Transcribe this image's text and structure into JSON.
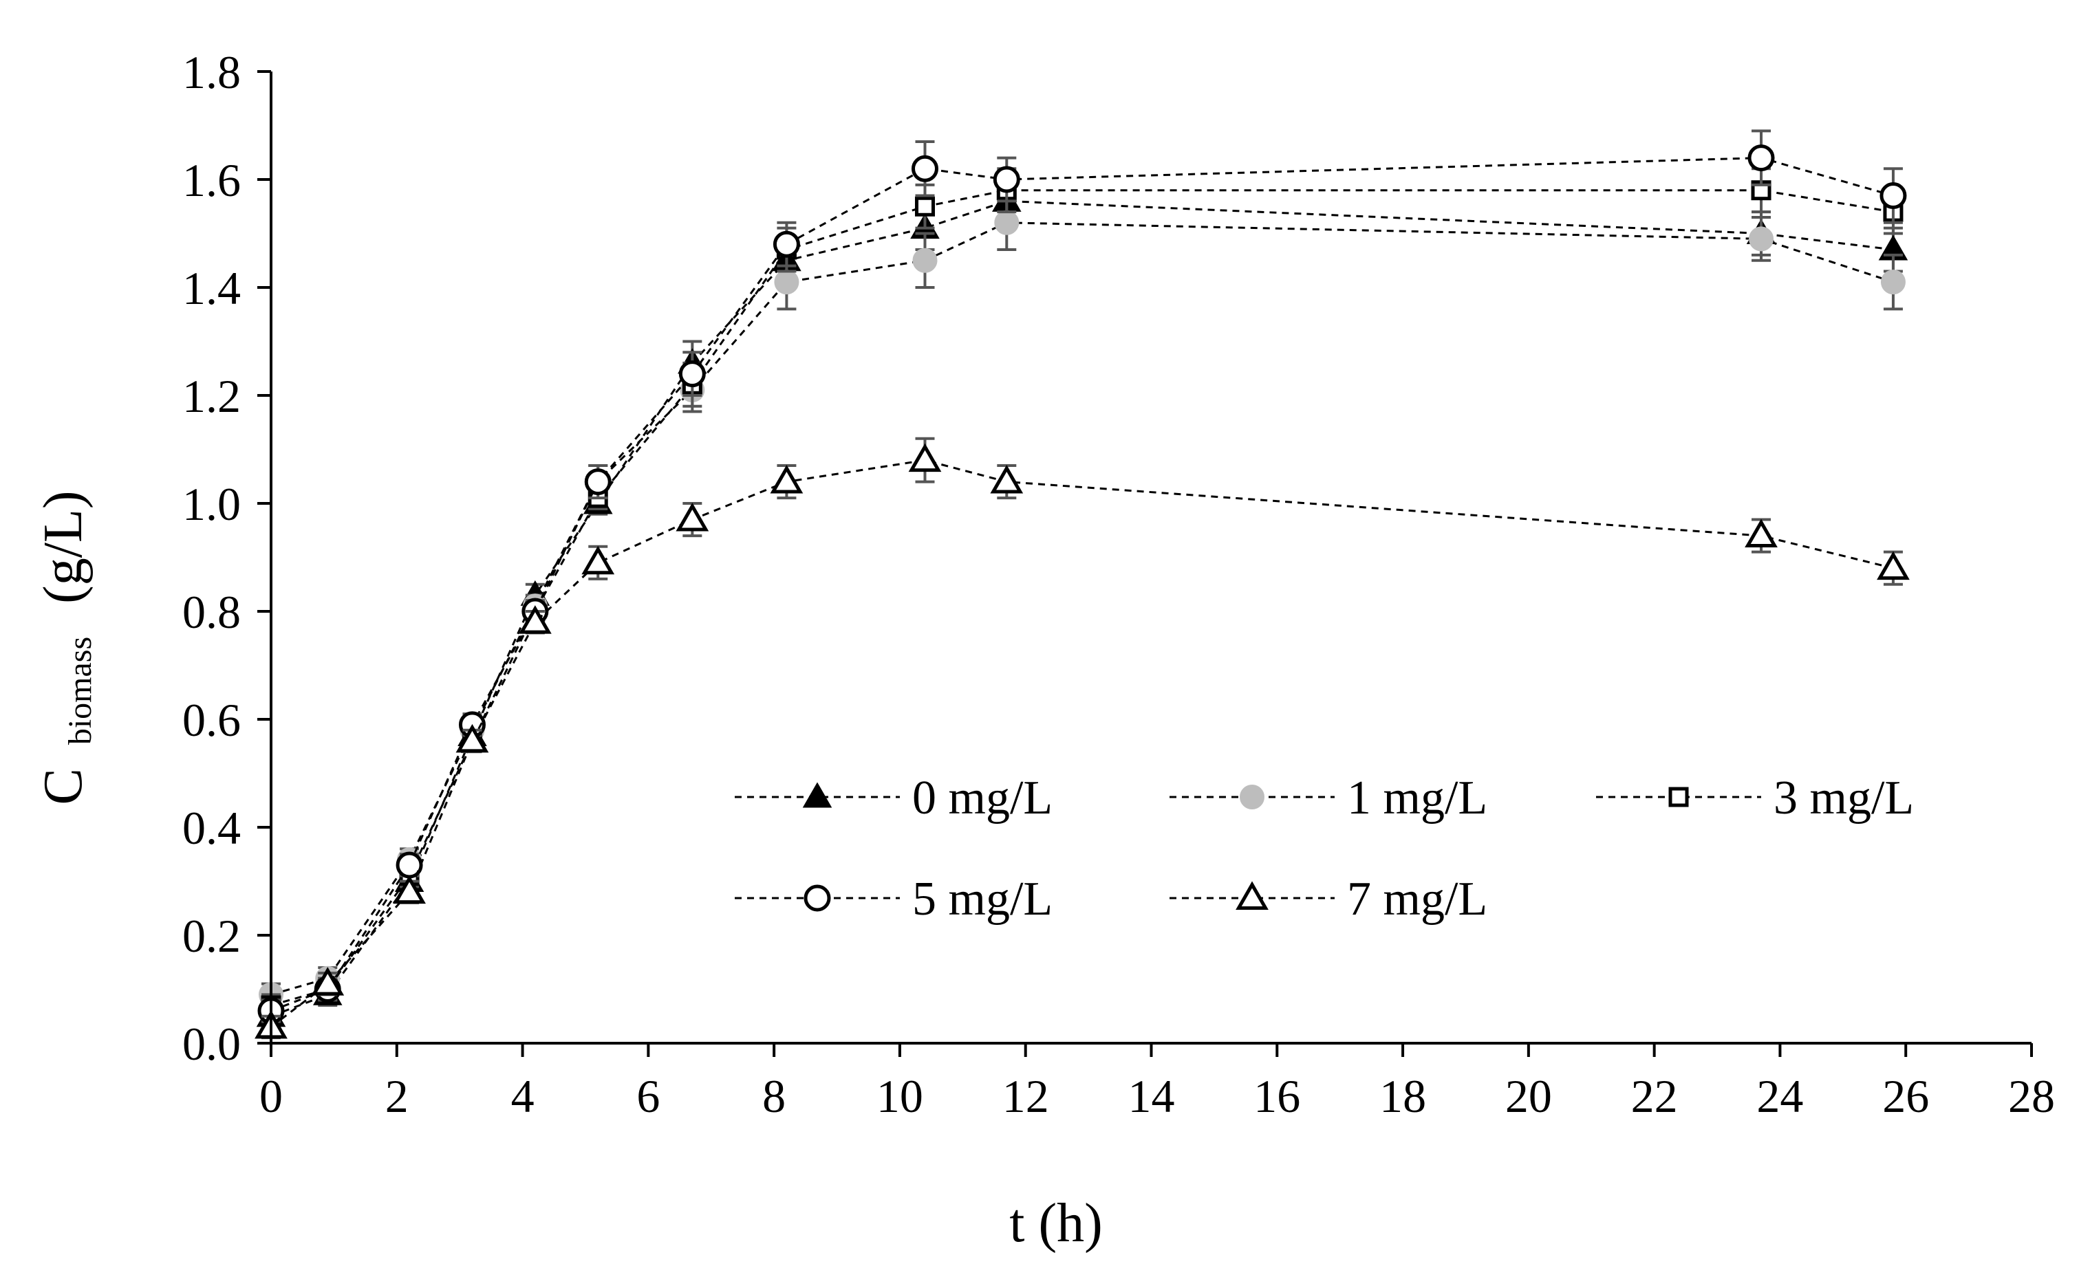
{
  "chart_data": {
    "type": "line",
    "title": "",
    "xlabel": "t (h)",
    "ylabel": {
      "main": "C",
      "subscript": "biomass",
      "unit": "(g/L)"
    },
    "xlim": [
      0,
      28
    ],
    "ylim": [
      0,
      1.8
    ],
    "xticks": [
      "0",
      "2",
      "4",
      "6",
      "8",
      "10",
      "12",
      "14",
      "16",
      "18",
      "20",
      "22",
      "24",
      "26",
      "28"
    ],
    "yticks": [
      "0.0",
      "0.2",
      "0.4",
      "0.6",
      "0.8",
      "1.0",
      "1.2",
      "1.4",
      "1.6",
      "1.8"
    ],
    "grid": false,
    "legend_position": "center-right, lower half inside plot",
    "x": [
      0,
      0.9,
      2.2,
      3.2,
      4.2,
      5.2,
      6.7,
      8.2,
      10.4,
      11.7,
      23.7,
      25.8
    ],
    "series": [
      {
        "name": "0 mg/L",
        "marker": "filled-triangle",
        "color": "#000000",
        "values": [
          0.05,
          0.09,
          0.3,
          0.57,
          0.83,
          1.0,
          1.26,
          1.45,
          1.51,
          1.56,
          1.5,
          1.47
        ],
        "errors": [
          0.02,
          0.02,
          0.02,
          0.02,
          0.02,
          0.02,
          0.04,
          0.04,
          0.04,
          0.04,
          0.04,
          0.04
        ]
      },
      {
        "name": "1 mg/L",
        "marker": "filled-circle",
        "color": "#bdbdbd",
        "values": [
          0.09,
          0.12,
          0.34,
          0.58,
          0.81,
          1.04,
          1.21,
          1.41,
          1.45,
          1.52,
          1.49,
          1.41
        ],
        "errors": [
          0.02,
          0.02,
          0.02,
          0.02,
          0.02,
          0.03,
          0.04,
          0.05,
          0.05,
          0.05,
          0.04,
          0.05
        ]
      },
      {
        "name": "3 mg/L",
        "marker": "open-square",
        "color": "#000000",
        "values": [
          0.07,
          0.1,
          0.31,
          0.56,
          0.8,
          1.01,
          1.22,
          1.47,
          1.55,
          1.58,
          1.58,
          1.54
        ],
        "errors": [
          0.02,
          0.02,
          0.02,
          0.02,
          0.02,
          0.02,
          0.04,
          0.04,
          0.04,
          0.04,
          0.04,
          0.04
        ]
      },
      {
        "name": "5 mg/L",
        "marker": "open-circle",
        "color": "#000000",
        "values": [
          0.06,
          0.1,
          0.33,
          0.59,
          0.8,
          1.04,
          1.24,
          1.48,
          1.62,
          1.6,
          1.64,
          1.57
        ],
        "errors": [
          0.02,
          0.02,
          0.02,
          0.02,
          0.02,
          0.03,
          0.04,
          0.04,
          0.05,
          0.04,
          0.05,
          0.05
        ]
      },
      {
        "name": "7 mg/L",
        "marker": "open-triangle",
        "color": "#000000",
        "values": [
          0.03,
          0.11,
          0.28,
          0.56,
          0.78,
          0.89,
          0.97,
          1.04,
          1.08,
          1.04,
          0.94,
          0.88
        ],
        "errors": [
          0.02,
          0.02,
          0.02,
          0.02,
          0.02,
          0.03,
          0.03,
          0.03,
          0.04,
          0.03,
          0.03,
          0.03
        ]
      }
    ]
  }
}
